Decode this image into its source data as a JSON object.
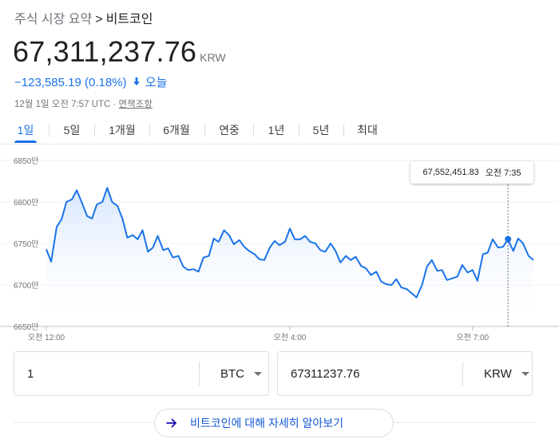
{
  "breadcrumb": {
    "parent": "주식 시장 요약",
    "separator": ">",
    "current": "비트코인"
  },
  "quote": {
    "price": "67,311,237.76",
    "currency": "KRW",
    "change": "−123,585.19 (0.18%)",
    "direction_icon": "arrow-down-icon",
    "period": "오늘",
    "timestamp": "12월 1일 오전 7:57 UTC · ",
    "disclaimer": "면책조항"
  },
  "tabs": [
    {
      "label": "1일",
      "active": true
    },
    {
      "label": "5일",
      "active": false
    },
    {
      "label": "1개월",
      "active": false
    },
    {
      "label": "6개월",
      "active": false
    },
    {
      "label": "연중",
      "active": false
    },
    {
      "label": "1년",
      "active": false
    },
    {
      "label": "5년",
      "active": false
    },
    {
      "label": "최대",
      "active": false
    }
  ],
  "tooltip": {
    "value": "67,552,451.83",
    "time": "오전 7:35"
  },
  "chart_data": {
    "type": "area",
    "y_ticks": [
      "6850만",
      "6800만",
      "6750만",
      "6700만",
      "6650만"
    ],
    "y_tick_values": [
      6850,
      6800,
      6750,
      6700,
      6650
    ],
    "ylim": [
      6650,
      6850
    ],
    "y_unit": "만 KRW",
    "x_ticks": [
      "오전 12:00",
      "오전 4:00",
      "오전 7:00"
    ],
    "x_tick_hours": [
      0,
      4,
      7
    ],
    "xlim_hours": [
      0,
      8.0
    ],
    "highlight": {
      "hour": 7.583,
      "value": 6755.2
    },
    "line_color": "#1a73e8",
    "fill_color": "#e8f0fe",
    "series": [
      {
        "x_hours": [
          0.0,
          0.08,
          0.17,
          0.25,
          0.33,
          0.42,
          0.5,
          0.58,
          0.67,
          0.75,
          0.83,
          0.92,
          1.0,
          1.08,
          1.17,
          1.25,
          1.33,
          1.42,
          1.5,
          1.58,
          1.67,
          1.75,
          1.83,
          1.92,
          2.0,
          2.08,
          2.17,
          2.25,
          2.33,
          2.42,
          2.5,
          2.58,
          2.67,
          2.75,
          2.83,
          2.92,
          3.0,
          3.08,
          3.17,
          3.25,
          3.33,
          3.42,
          3.5,
          3.58,
          3.67,
          3.75,
          3.83,
          3.92,
          4.0,
          4.08,
          4.17,
          4.25,
          4.33,
          4.42,
          4.5,
          4.58,
          4.67,
          4.75,
          4.83,
          4.92,
          5.0,
          5.08,
          5.17,
          5.25,
          5.33,
          5.42,
          5.5,
          5.58,
          5.67,
          5.75,
          5.83,
          5.92,
          6.0,
          6.08,
          6.17,
          6.25,
          6.33,
          6.42,
          6.5,
          6.58,
          6.67,
          6.75,
          6.83,
          6.92,
          7.0,
          7.08,
          7.17,
          7.25,
          7.33,
          7.42,
          7.5,
          7.58,
          7.67,
          7.75,
          7.83,
          7.92,
          8.0
        ],
        "values": [
          6743,
          6728,
          6770,
          6779,
          6800,
          6803,
          6814,
          6800,
          6783,
          6780,
          6797,
          6800,
          6817,
          6800,
          6795,
          6780,
          6757,
          6760,
          6755,
          6766,
          6740,
          6745,
          6759,
          6742,
          6744,
          6733,
          6735,
          6722,
          6718,
          6719,
          6716,
          6733,
          6735,
          6756,
          6752,
          6766,
          6760,
          6749,
          6754,
          6746,
          6741,
          6737,
          6731,
          6730,
          6745,
          6753,
          6748,
          6752,
          6768,
          6755,
          6755,
          6759,
          6752,
          6750,
          6742,
          6740,
          6750,
          6741,
          6727,
          6735,
          6730,
          6734,
          6723,
          6720,
          6712,
          6716,
          6704,
          6701,
          6700,
          6707,
          6697,
          6695,
          6690,
          6685,
          6700,
          6722,
          6730,
          6717,
          6718,
          6706,
          6708,
          6710,
          6724,
          6715,
          6718,
          6705,
          6737,
          6739,
          6755,
          6745,
          6746,
          6755,
          6741,
          6756,
          6750,
          6735,
          6730
        ]
      }
    ]
  },
  "converter": {
    "from_value": "1",
    "from_unit": "BTC",
    "to_value": "67311237.76",
    "to_unit": "KRW"
  },
  "more": {
    "icon": "arrow-right-icon",
    "label": "비트코인에 대해 자세히 알아보기"
  }
}
